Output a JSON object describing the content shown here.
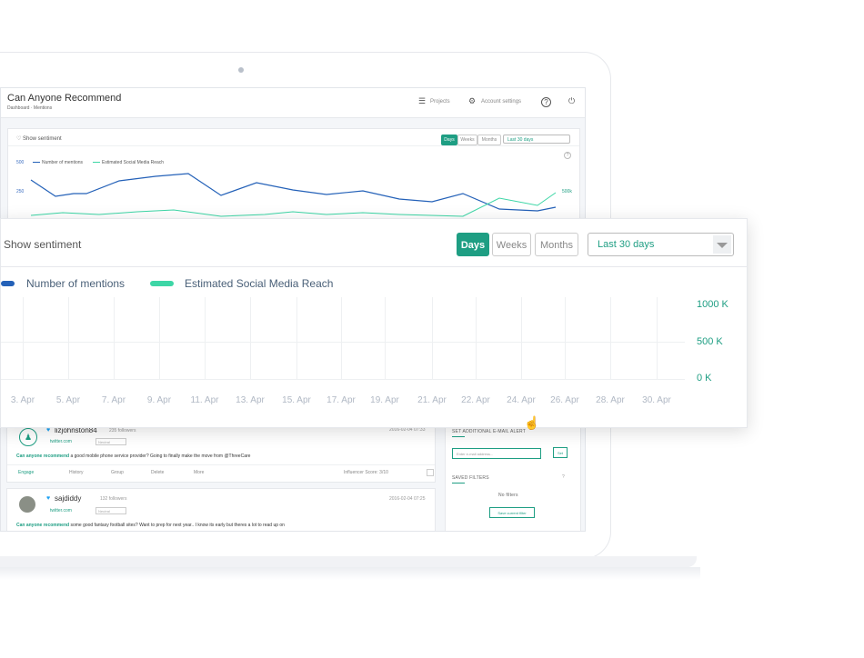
{
  "app": {
    "title": "Can Anyone Recommend",
    "breadcrumb": "Dashboard · Mentions",
    "nav": {
      "projects": "Projects",
      "account_settings": "Account settings"
    }
  },
  "mini_chart": {
    "sentiment_label": "Show sentiment",
    "buttons": [
      "Days",
      "Weeks",
      "Months"
    ],
    "active_button": "Days",
    "range_select": "Last 30 days",
    "legend": [
      "Number of mentions",
      "Estimated Social Media Reach"
    ],
    "y_labels_left": [
      "500",
      "250"
    ],
    "y_label_right": "500k",
    "colors": {
      "mentions": "#2461b8",
      "reach": "#3dd6a6"
    }
  },
  "mentions": [
    {
      "user": "lizjohnston84",
      "followers": "235 followers",
      "source": "twitter.com",
      "sentiment": "Neutral",
      "date": "2016-02-04 07:33",
      "highlight": "Can anyone recommend",
      "text": " a good mobile phone service provider? Going to finally make the move from @ThreeCare",
      "actions": [
        "Engage",
        "History",
        "Group",
        "Delete",
        "More"
      ],
      "influencer_label": "Influencer Score: 3/10"
    },
    {
      "user": "sajdiddy",
      "followers": "132 followers",
      "source": "twitter.com",
      "sentiment": "Neutral",
      "date": "2016-02-04 07:25",
      "highlight": "Can anyone recommend",
      "text": " some good fantasy football sites? Want to prep for next year.. I know its early but theres a lot to read up on"
    }
  ],
  "side_panel": {
    "email_alert_title": "SET ADDITIONAL E-MAIL ALERT",
    "email_placeholder": "Enter e-mail address...",
    "set_button": "Set",
    "saved_filters_title": "SAVED FILTERS",
    "no_filters": "No filters",
    "save_filter_button": "Save current filter"
  },
  "zoom_chart": {
    "sentiment_label": "Show sentiment",
    "buttons": {
      "days": "Days",
      "weeks": "Weeks",
      "months": "Months"
    },
    "active_button": "Days",
    "range_select": "Last 30 days",
    "legend": {
      "mentions": "Number of mentions",
      "reach": "Estimated Social Media Reach"
    },
    "y_ticks": [
      "1000 K",
      "500 K",
      "0 K"
    ],
    "x_ticks": [
      "3. Apr",
      "5. Apr",
      "7. Apr",
      "9. Apr",
      "11. Apr",
      "13. Apr",
      "15. Apr",
      "17. Apr",
      "19. Apr",
      "21. Apr",
      "22. Apr",
      "24. Apr",
      "26. Apr",
      "28. Apr",
      "30. Apr"
    ],
    "colors": {
      "accent": "#1e9e83",
      "mentions": "#2461b8",
      "reach": "#3dd6a6"
    }
  }
}
